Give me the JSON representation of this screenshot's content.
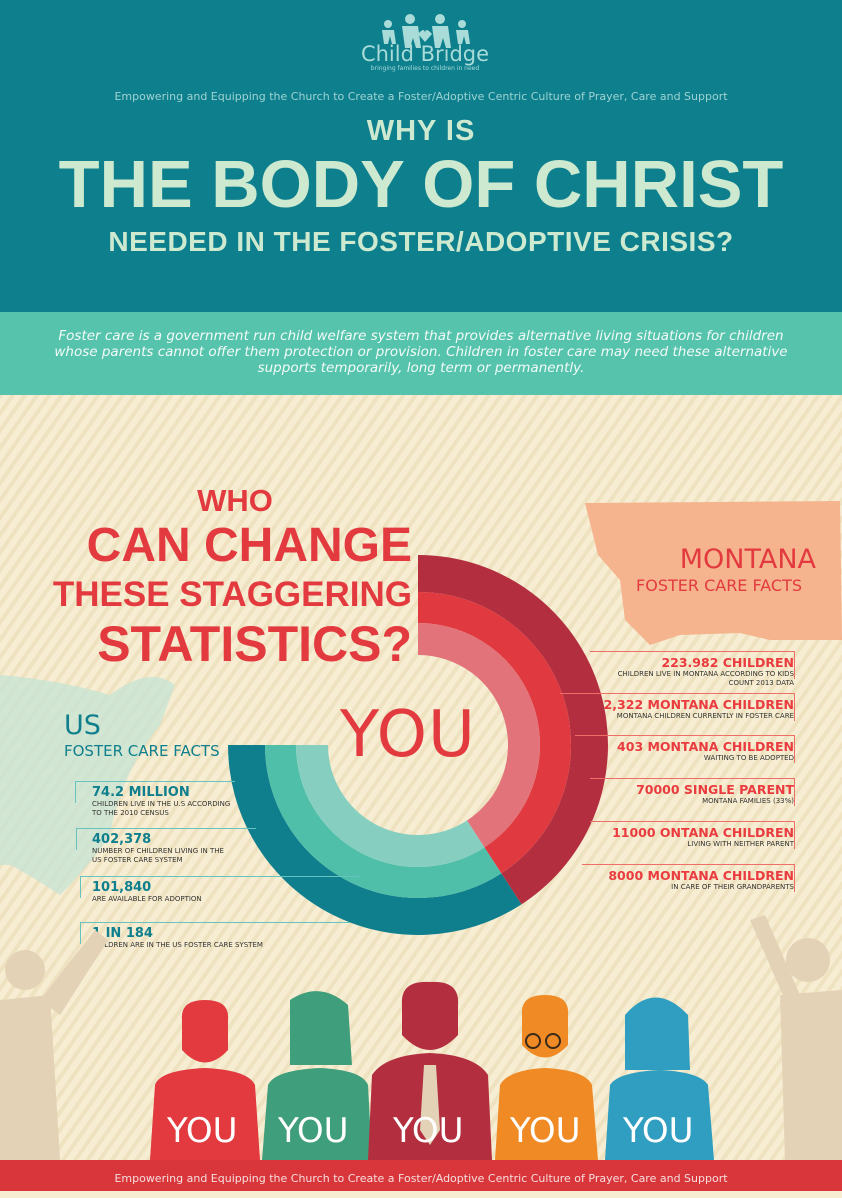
{
  "header": {
    "logo_name": "Child Bridge",
    "logo_tagline": "bringing families to children in need",
    "tagline": "Empowering and Equipping the Church to Create a Foster/Adoptive Centric Culture of Prayer,  Care and Support",
    "title_line1": "WHY IS",
    "title_line2": "THE BODY OF CHRIST",
    "title_line3": "NEEDED IN THE FOSTER/ADOPTIVE CRISIS?"
  },
  "intro": "Foster care is a government run child welfare system that provides alternative living situations for children whose parents cannot offer them protection or provision. Children in foster care may need these alternative supports temporarily, long term or permanently.",
  "question": {
    "l1": "WHO",
    "l2": "CAN CHANGE",
    "l3": "THESE STAGGERING",
    "l4": "STATISTICS?"
  },
  "center_label": "YOU",
  "montana": {
    "title": "MONTANA",
    "subtitle": "FOSTER CARE FACTS",
    "facts": [
      {
        "headline": "223.982 CHILDREN",
        "detail": "CHILDREN LIVE IN MONTANA ACCORDING TO KIDS COUNT 2013 DATA"
      },
      {
        "headline": "2,322 MONTANA CHILDREN",
        "detail": "MONTANA CHILDREN CURRENTLY IN FOSTER CARE"
      },
      {
        "headline": "403 MONTANA CHILDREN",
        "detail": "WAITING TO BE ADOPTED"
      },
      {
        "headline": "70000 SINGLE PARENT",
        "detail": "MONTANA FAMILIES (33%)"
      },
      {
        "headline": "11000 ONTANA CHILDREN",
        "detail": "LIVING WITH NEITHER PARENT"
      },
      {
        "headline": "8000 MONTANA CHILDREN",
        "detail": "IN CARE OF THEIR GRANDPARENTS"
      }
    ]
  },
  "us": {
    "title": "US",
    "subtitle": "FOSTER CARE FACTS",
    "facts": [
      {
        "headline": "74.2 MILLION",
        "detail": "CHILDREN LIVE IN THE U.S ACCORDING TO THE 2010 CENSUS"
      },
      {
        "headline": "402,378",
        "detail": "NUMBER OF CHILDREN LIVING IN THE US FOSTER CARE SYSTEM"
      },
      {
        "headline": "101,840",
        "detail": "ARE AVAILABLE FOR ADOPTION"
      },
      {
        "headline": "1 IN 184",
        "detail": "CHILDREN ARE IN THE US FOSTER CARE SYSTEM"
      }
    ]
  },
  "people": [
    "YOU",
    "YOU",
    "YOU",
    "YOU",
    "YOU"
  ],
  "footer": "Empowering and Equipping the Church to Create a Foster/Adoptive Centric Culture of Prayer,  Care and Support",
  "colors": {
    "teal": "#0d7f8d",
    "mint": "#56c3ad",
    "red": "#e23a3f",
    "cream": "#f6edd2"
  }
}
